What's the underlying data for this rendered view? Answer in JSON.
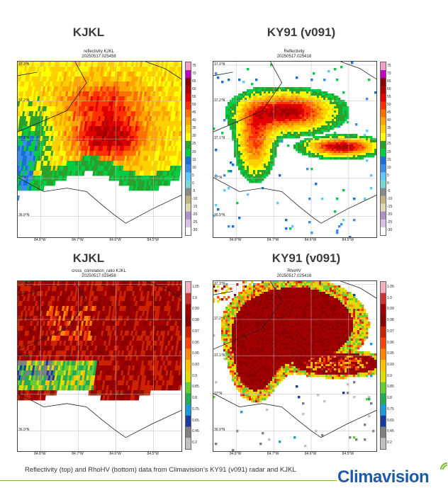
{
  "headings": {
    "top_left": "KJKL",
    "top_right": "KY91 (v091)",
    "bottom_left": "KJKL",
    "bottom_right": "KY91 (v091)"
  },
  "caption": "Reflectivity (top) and RhoHV (bottom) data from Climavision’s KY91 (v091) radar and KJKL",
  "logo": {
    "text": "Climavision",
    "color": "#1e5aa8",
    "accent": "#7dbb3c"
  },
  "chart_data": [
    {
      "type": "heatmap",
      "title": "reflectivity KJKL",
      "subtitle": "20250517.025458",
      "ylabel_ticks": [
        "37.3°N",
        "37.2°N",
        "37.1°N",
        "37°N",
        "36.9°N"
      ],
      "xlabel_ticks": [
        "84.8°W",
        "84.7°W",
        "84.6°W",
        "84.5°W"
      ],
      "colorbar": {
        "ticks": [
          "75",
          "70",
          "65",
          "60",
          "55",
          "50",
          "45",
          "40",
          "35",
          "30",
          "25",
          "20",
          "15",
          "10",
          "5",
          "0",
          "-5",
          "-10",
          "-15",
          "-20",
          "-25",
          "-30"
        ],
        "colors": [
          "#f0a0c8",
          "#c000c0",
          "#8b0000",
          "#b00000",
          "#e00000",
          "#ff3000",
          "#ff7000",
          "#ffa500",
          "#ffd000",
          "#ffff00",
          "#2ca02c",
          "#00cc44",
          "#1a6fd6",
          "#3b8ee8",
          "#5fc8ff",
          "#77d8d8",
          "#8a8a8a",
          "#c2b280",
          "#e0d8b0",
          "#b090c8",
          "#d8c0e8",
          "#ffffff"
        ]
      }
    },
    {
      "type": "heatmap",
      "title": "Reflectivity",
      "subtitle": "20250517.025418",
      "ylabel_ticks": [
        "37.3°N",
        "37.2°N",
        "37.1°N",
        "37°N",
        "36.9°N"
      ],
      "xlabel_ticks": [
        "84.8°W",
        "84.7°W",
        "84.6°W",
        "84.5°W"
      ],
      "colorbar": {
        "ticks": [
          "75",
          "70",
          "65",
          "60",
          "55",
          "50",
          "45",
          "40",
          "35",
          "30",
          "25",
          "20",
          "15",
          "10",
          "5",
          "0",
          "-5",
          "-10",
          "-15",
          "-20",
          "-25",
          "-30"
        ]
      }
    },
    {
      "type": "heatmap",
      "title": "cross_correlation_ratio KJKL",
      "subtitle": "20250517.025458",
      "ylabel_ticks": [
        "37.3°N",
        "37.2°N",
        "37.1°N",
        "37°N",
        "36.9°N"
      ],
      "xlabel_ticks": [
        "84.8°W",
        "84.7°W",
        "84.6°W",
        "84.5°W"
      ],
      "colorbar": {
        "ticks": [
          "1.05",
          "1.0",
          "0.99",
          "0.98",
          "0.97",
          "0.96",
          "0.95",
          "0.93",
          "0.9",
          "0.85",
          "0.8",
          "0.75",
          "0.65",
          "0.45",
          "0.2"
        ],
        "colors": [
          "#f4b0c0",
          "#cc3333",
          "#a00000",
          "#8b0000",
          "#cc2200",
          "#ff4400",
          "#ff8800",
          "#ffc000",
          "#dddd00",
          "#66cc33",
          "#22aa55",
          "#1a9ad6",
          "#1a3aa0",
          "#808080",
          "#c0c0c0"
        ]
      }
    },
    {
      "type": "heatmap",
      "title": "RhoHV",
      "subtitle": "20250517.025418",
      "ylabel_ticks": [
        "37.3°N",
        "37.2°N",
        "37.1°N",
        "37°N",
        "36.9°N"
      ],
      "xlabel_ticks": [
        "84.8°W",
        "84.7°W",
        "84.6°W",
        "84.5°W"
      ],
      "colorbar": {
        "ticks": [
          "1.05",
          "1.0",
          "0.99",
          "0.98",
          "0.97",
          "0.96",
          "0.95",
          "0.93",
          "0.9",
          "0.85",
          "0.8",
          "0.75",
          "0.65",
          "0.45",
          "0.2"
        ]
      }
    }
  ]
}
